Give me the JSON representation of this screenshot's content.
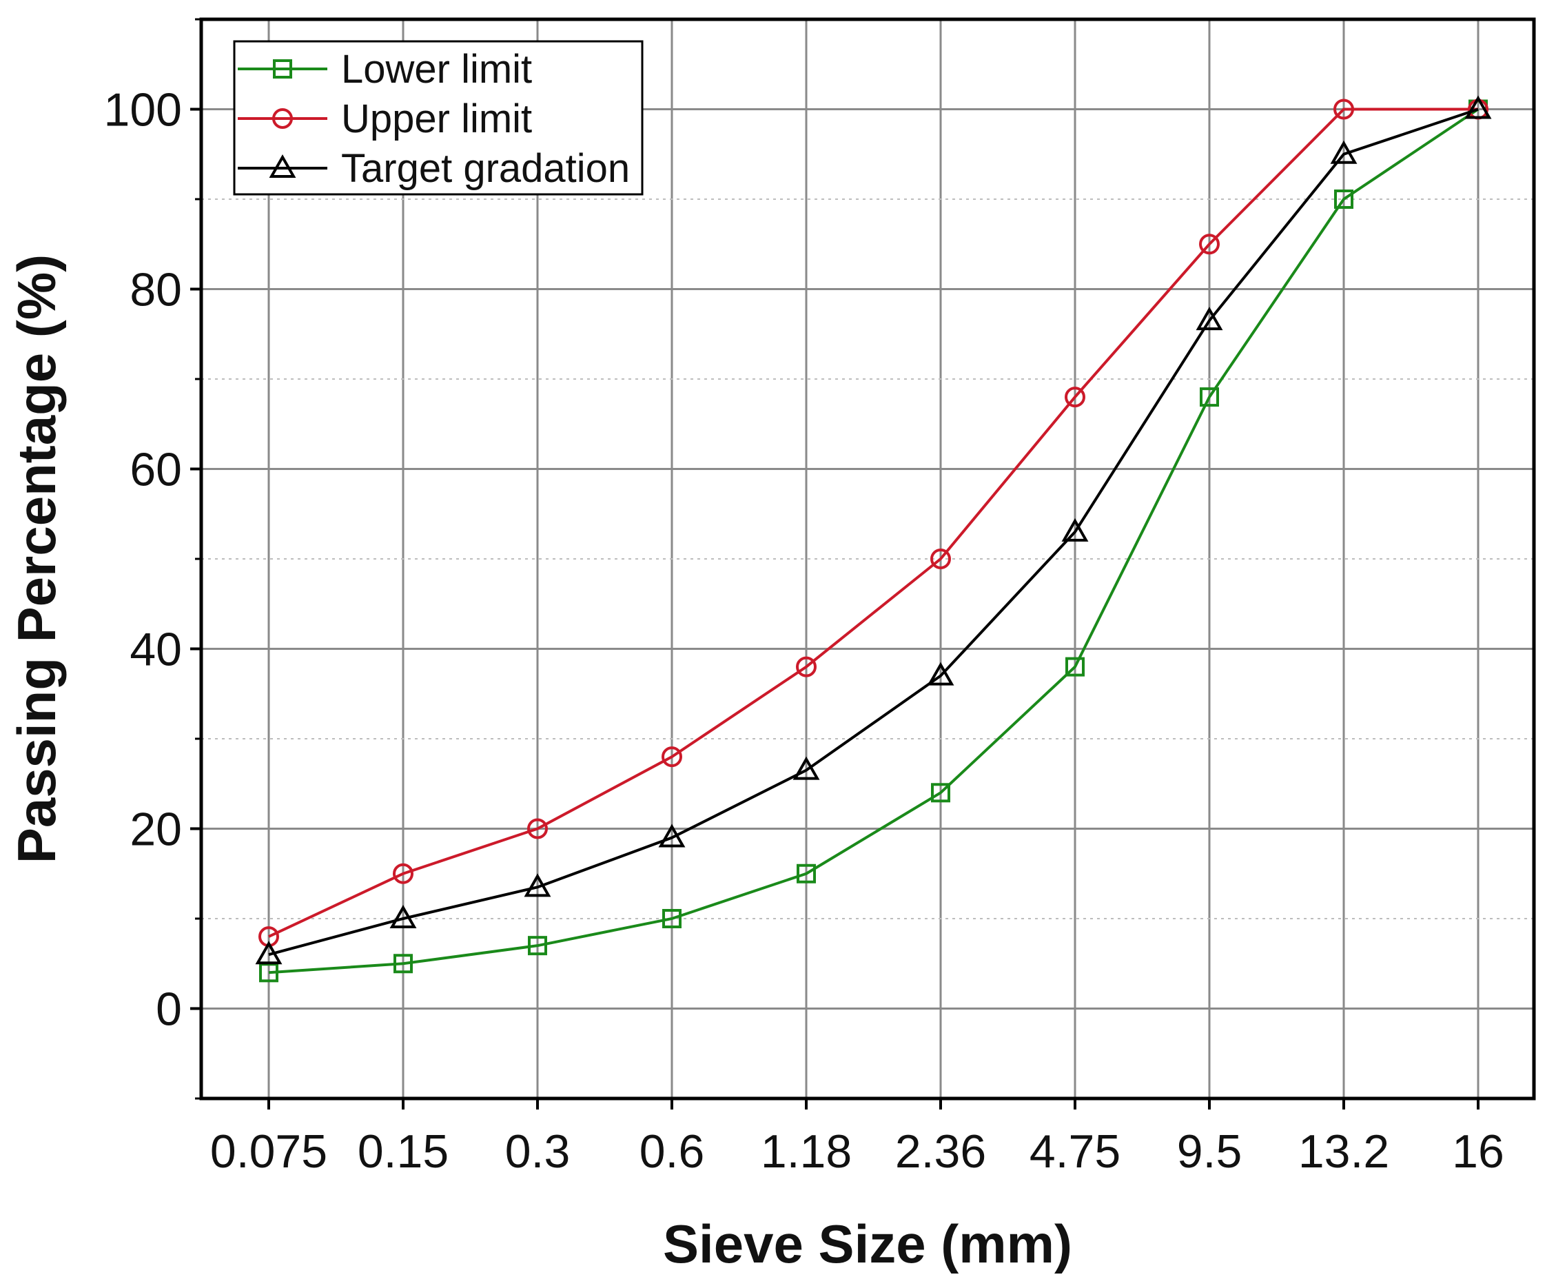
{
  "chart_data": {
    "type": "line",
    "xlabel": "Sieve Size (mm)",
    "ylabel": "Passing Percentage (%)",
    "categories": [
      "0.075",
      "0.15",
      "0.3",
      "0.6",
      "1.18",
      "2.36",
      "4.75",
      "9.5",
      "13.2",
      "16"
    ],
    "ylim": [
      -10,
      110
    ],
    "yticks": [
      "0",
      "20",
      "40",
      "60",
      "80",
      "100"
    ],
    "grid": true,
    "legend_position": "top-left",
    "series": [
      {
        "name": "Lower limit",
        "color": "#1a8a1a",
        "marker": "square",
        "values": [
          4,
          5,
          7,
          10,
          15,
          24,
          38,
          68,
          90,
          100
        ]
      },
      {
        "name": "Upper limit",
        "color": "#cc1a2a",
        "marker": "circle",
        "values": [
          8,
          15,
          20,
          28,
          38,
          50,
          68,
          85,
          100,
          100
        ]
      },
      {
        "name": "Target gradation",
        "color": "#000000",
        "marker": "triangle",
        "values": [
          6,
          10,
          13.5,
          19,
          26.5,
          37,
          53,
          76.5,
          95,
          100
        ]
      }
    ]
  }
}
